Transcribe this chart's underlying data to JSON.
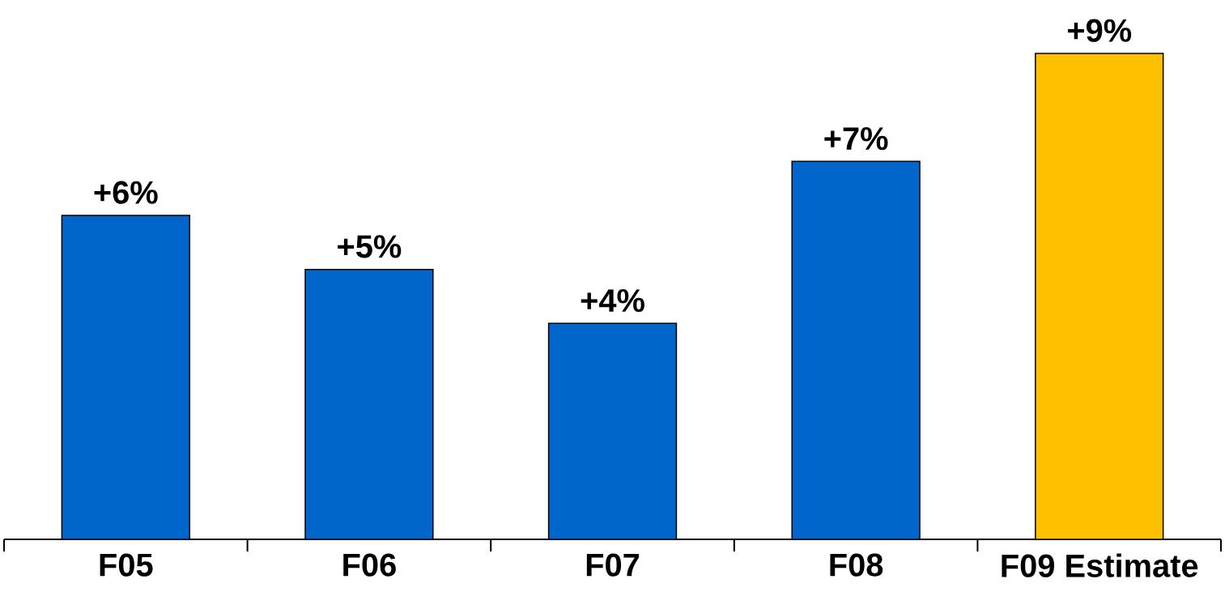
{
  "chart_data": {
    "type": "bar",
    "categories": [
      "F05",
      "F06",
      "F07",
      "F08",
      "F09 Estimate"
    ],
    "values": [
      6,
      5,
      4,
      7,
      9
    ],
    "value_labels": [
      "+6%",
      "+5%",
      "+4%",
      "+7%",
      "+9%"
    ],
    "colors": [
      "#0066cc",
      "#0066cc",
      "#0066cc",
      "#0066cc",
      "#ffc000"
    ]
  }
}
